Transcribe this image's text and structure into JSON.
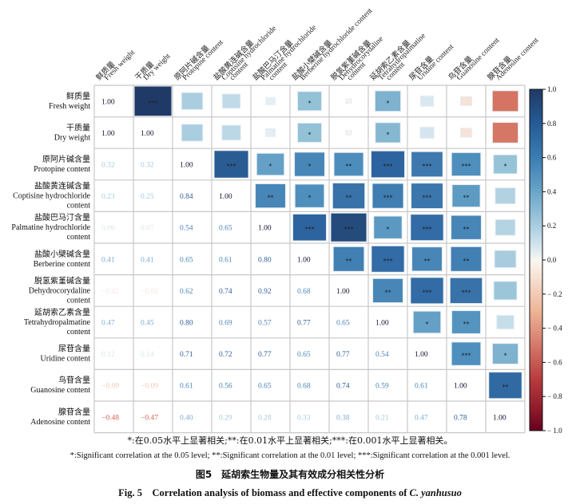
{
  "chart_data": {
    "type": "heatmap",
    "subtype": "correlation-matrix",
    "variables": [
      {
        "cn": "鲜质量",
        "en": "Fresh weight"
      },
      {
        "cn": "干质量",
        "en": "Dry weight"
      },
      {
        "cn": "原阿片碱含量",
        "en": "Protopine content"
      },
      {
        "cn": "盐酸黄连碱含量",
        "en": "Coptisine hydrochloride content"
      },
      {
        "cn": "盐酸巴马汀含量",
        "en": "Palmatine hydrochloride content"
      },
      {
        "cn": "盐酸小檗碱含量",
        "en": "Berberine hydrochloride content"
      },
      {
        "cn": "脱氢紫堇碱含量",
        "en": "Dehydrocorydaline content"
      },
      {
        "cn": "延胡索乙素含量",
        "en": "Tetrahydropalmatine content"
      },
      {
        "cn": "尿苷含量",
        "en": "Uridine content"
      },
      {
        "cn": "鸟苷含量",
        "en": "Guanosine content"
      },
      {
        "cn": "腺苷含量",
        "en": "Adenosine content"
      }
    ],
    "row_labels": [
      {
        "cn": "鲜质量",
        "en": [
          "Fresh weight"
        ]
      },
      {
        "cn": "干质量",
        "en": [
          "Dry weight"
        ]
      },
      {
        "cn": "原阿片碱含量",
        "en": [
          "Protopine content"
        ]
      },
      {
        "cn": "盐酸黄连碱含量",
        "en": [
          "Coptisine hydrochloride",
          "content"
        ]
      },
      {
        "cn": "盐酸巴马汀含量",
        "en": [
          "Palmatine hydrochloride",
          "content"
        ]
      },
      {
        "cn": "盐酸小檗碱含量",
        "en": [
          "Berberine content"
        ]
      },
      {
        "cn": "脱氢紫堇碱含量",
        "en": [
          "Dehydrocorydaline",
          "content"
        ]
      },
      {
        "cn": "延胡索乙素含量",
        "en": [
          "Tetrahydropalmatine",
          "content"
        ]
      },
      {
        "cn": "尿苷含量",
        "en": [
          "Uridine content"
        ]
      },
      {
        "cn": "鸟苷含量",
        "en": [
          "Guanosine content"
        ]
      },
      {
        "cn": "腺苷含量",
        "en": [
          "Adenosine content"
        ]
      }
    ],
    "col_labels": [
      {
        "cn": "鲜质量",
        "en": [
          "Fresh weight"
        ]
      },
      {
        "cn": "干质量",
        "en": [
          "Dry weight"
        ]
      },
      {
        "cn": "原阿片碱含量",
        "en": [
          "Protopine content"
        ]
      },
      {
        "cn": "盐酸黄连碱含量",
        "en": [
          "Coptisine hydrochloride",
          "content"
        ]
      },
      {
        "cn": "盐酸巴马汀含量",
        "en": [
          "Palmatine hydrochloride",
          "content"
        ]
      },
      {
        "cn": "盐酸小檗碱含量",
        "en": [
          "Berberine hydrochloride content"
        ]
      },
      {
        "cn": "脱氢紫堇碱含量",
        "en": [
          "Dehydrocorydaline",
          "content"
        ]
      },
      {
        "cn": "延胡索乙素含量",
        "en": [
          "Tetrahydropalmatine",
          "content"
        ]
      },
      {
        "cn": "尿苷含量",
        "en": [
          "Uridine content"
        ]
      },
      {
        "cn": "鸟苷含量",
        "en": [
          "Guanosine content"
        ]
      },
      {
        "cn": "腺苷含量",
        "en": [
          "Adenosine content"
        ]
      }
    ],
    "matrix": [
      [
        1.0,
        1.0,
        0.32,
        0.23,
        0.06,
        0.41,
        -0.02,
        0.47,
        0.12,
        -0.09,
        -0.48
      ],
      [
        1.0,
        1.0,
        0.32,
        0.25,
        0.07,
        0.41,
        -0.02,
        0.45,
        0.14,
        -0.09,
        -0.47
      ],
      [
        0.32,
        0.32,
        1.0,
        0.84,
        0.54,
        0.65,
        0.62,
        0.8,
        0.71,
        0.61,
        0.4
      ],
      [
        0.23,
        0.25,
        0.84,
        1.0,
        0.65,
        0.61,
        0.74,
        0.69,
        0.72,
        0.56,
        0.29
      ],
      [
        0.06,
        0.07,
        0.54,
        0.65,
        1.0,
        0.8,
        0.92,
        0.57,
        0.77,
        0.65,
        0.28
      ],
      [
        0.41,
        0.41,
        0.65,
        0.61,
        0.8,
        1.0,
        0.68,
        0.77,
        0.65,
        0.68,
        0.33
      ],
      [
        -0.02,
        -0.02,
        0.62,
        0.74,
        0.92,
        0.68,
        1.0,
        0.65,
        0.77,
        0.74,
        0.38
      ],
      [
        0.47,
        0.45,
        0.8,
        0.69,
        0.57,
        0.77,
        0.65,
        1.0,
        0.54,
        0.59,
        0.21
      ],
      [
        0.12,
        0.14,
        0.71,
        0.72,
        0.77,
        0.65,
        0.77,
        0.54,
        1.0,
        0.61,
        0.47
      ],
      [
        -0.09,
        -0.09,
        0.61,
        0.56,
        0.65,
        0.68,
        0.74,
        0.59,
        0.61,
        1.0,
        0.78
      ],
      [
        -0.48,
        -0.47,
        0.4,
        0.29,
        0.28,
        0.33,
        0.38,
        0.21,
        0.47,
        0.78,
        1.0
      ]
    ],
    "significance_upper": [
      [
        "",
        "***",
        "",
        "",
        "",
        "*",
        "",
        "*",
        "",
        "",
        ""
      ],
      [
        "",
        "",
        "",
        "",
        "",
        "*",
        "",
        "*",
        "",
        "",
        ""
      ],
      [
        "",
        "",
        "",
        "***",
        "*",
        "*",
        "**",
        "***",
        "***",
        "***",
        "*"
      ],
      [
        "",
        "",
        "",
        "",
        "**",
        "*",
        "**",
        "***",
        "***",
        "**",
        ""
      ],
      [
        "",
        "",
        "",
        "",
        "",
        "***",
        "***",
        "*",
        "***",
        "**",
        ""
      ],
      [
        "",
        "",
        "",
        "",
        "",
        "",
        "**",
        "***",
        "**",
        "**",
        ""
      ],
      [
        "",
        "",
        "",
        "",
        "",
        "",
        "",
        "**",
        "***",
        "***",
        ""
      ],
      [
        "",
        "",
        "",
        "",
        "",
        "",
        "",
        "",
        "*",
        "**",
        ""
      ],
      [
        "",
        "",
        "",
        "",
        "",
        "",
        "",
        "",
        "",
        "***",
        "*"
      ],
      [
        "",
        "",
        "",
        "",
        "",
        "",
        "",
        "",
        "",
        "",
        "**"
      ],
      [
        "",
        "",
        "",
        "",
        "",
        "",
        "",
        "",
        "",
        "",
        ""
      ]
    ],
    "lower_triangle": "numeric values",
    "upper_triangle": "colored squares sized by |r| with significance stars",
    "colorbar": {
      "range": [
        -1.0,
        1.0
      ],
      "ticks": [
        1.0,
        0.8,
        0.6,
        0.4,
        0.2,
        0.0,
        -0.2,
        -0.4,
        -0.6,
        -0.8,
        -1.0
      ],
      "tick_labels": [
        "1.0",
        "0.8",
        "0.6",
        "0.4",
        "0.2",
        "0.0",
        "− 0.2",
        "− 0.4",
        "− 0.6",
        "− 0.8",
        "− 1.0"
      ],
      "colormap": "RdBu",
      "colors": {
        "pos_max": "#1f3a66",
        "pos_mid": "#3f84b5",
        "pos_low": "#a9cde0",
        "zero": "#f8f4f0",
        "neg_low": "#f0c0a8",
        "neg_mid": "#c8605a",
        "neg_max": "#6a0d22"
      },
      "placement": "right"
    },
    "title": "",
    "xlabel": "",
    "ylabel": ""
  },
  "notes": {
    "cn": "*:在0.05水平上显著相关;**:在0.01水平上显著相关;***:在0.001水平上显著相关。",
    "en": "*:Significant correlation at the 0.05 level; **:Significant correlation at the 0.01 level; ***:Significant correlation at the 0.001 level."
  },
  "caption": {
    "cn": "图5　延胡索生物量及其有效成分相关性分析",
    "en_prefix": "Fig. 5　Correlation analysis of biomass and effective components of ",
    "en_species": "C. yanhusuo"
  }
}
